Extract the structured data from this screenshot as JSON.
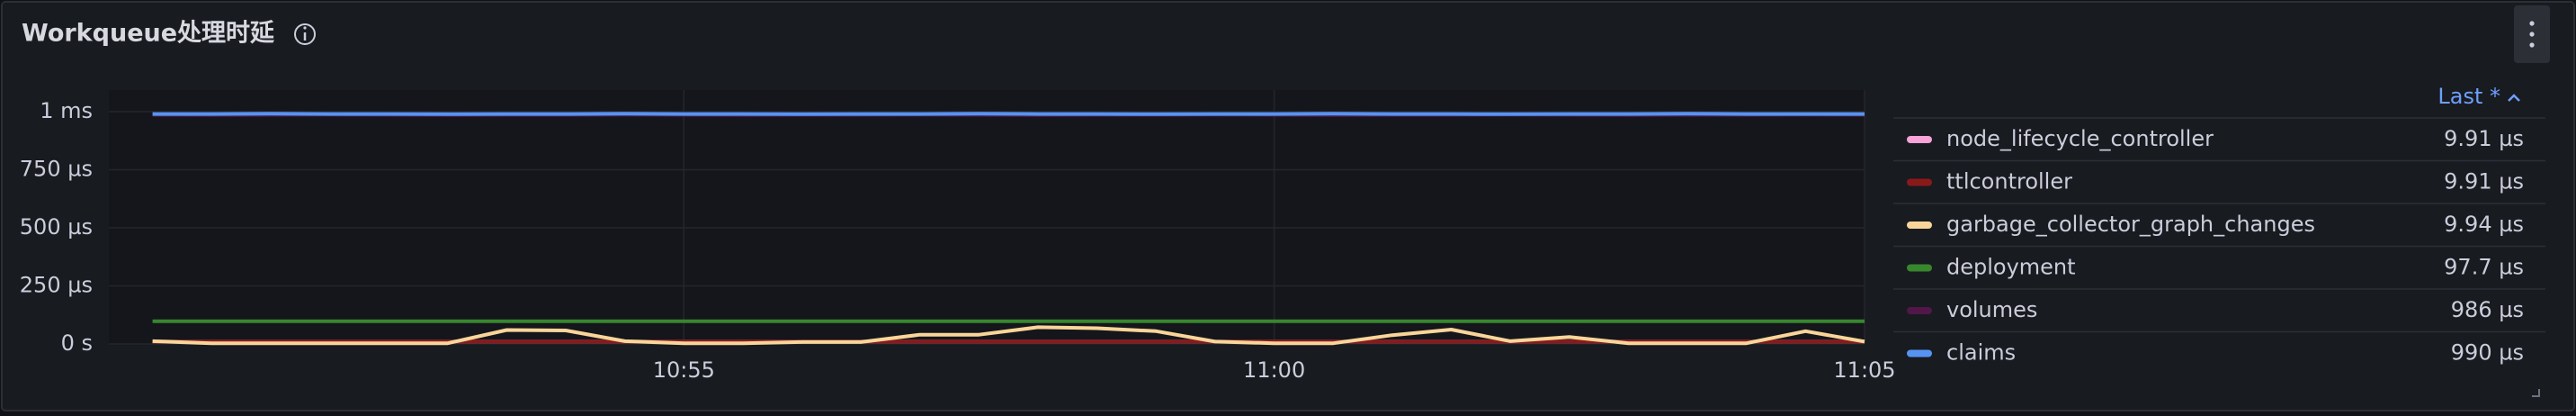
{
  "header": {
    "title": "Workqueue处理时延"
  },
  "chart_data": {
    "type": "line",
    "x": [
      650.5,
      651,
      651.5,
      652,
      652.5,
      653,
      653.5,
      654,
      654.5,
      655,
      655.5,
      656,
      656.5,
      657,
      657.5,
      658,
      658.5,
      659,
      659.5,
      660,
      660.5,
      661,
      661.5,
      662,
      662.5,
      663,
      663.5,
      664,
      664.5,
      665
    ],
    "xlim": [
      650.13,
      665
    ],
    "xticks": [
      {
        "value": 655,
        "label": "10:55"
      },
      {
        "value": 660,
        "label": "11:00"
      },
      {
        "value": 665,
        "label": "11:05"
      }
    ],
    "ylim": [
      0,
      1000
    ],
    "yticks": [
      {
        "value": 0,
        "label": "0 s"
      },
      {
        "value": 250,
        "label": "250 µs"
      },
      {
        "value": 500,
        "label": "500 µs"
      },
      {
        "value": 750,
        "label": "750 µs"
      },
      {
        "value": 1000,
        "label": "1 ms"
      }
    ],
    "grid": true,
    "legend_header": "Last *",
    "series": [
      {
        "name": "node_lifecycle_controller",
        "color": "#f5a3d9",
        "legend_value": {
          "value": 9.91,
          "label": "9.91 µs"
        },
        "values": [
          9.9,
          9.92,
          9.9,
          9.91,
          9.9,
          9.92,
          9.9,
          9.91,
          9.9,
          9.92,
          9.9,
          9.91,
          9.9,
          9.92,
          9.9,
          9.91,
          9.9,
          9.92,
          9.9,
          9.91,
          9.9,
          9.92,
          9.9,
          9.91,
          9.9,
          9.92,
          9.9,
          9.91,
          9.9,
          9.91
        ]
      },
      {
        "name": "ttlcontroller",
        "color": "#8a1a1a",
        "legend_value": {
          "value": 9.91,
          "label": "9.91 µs"
        },
        "values": [
          9.92,
          9.9,
          9.91,
          9.9,
          9.92,
          9.9,
          9.91,
          9.9,
          9.92,
          9.9,
          9.91,
          9.9,
          9.92,
          9.9,
          9.91,
          9.9,
          9.92,
          9.9,
          9.91,
          9.9,
          9.92,
          9.9,
          9.91,
          9.9,
          9.92,
          9.9,
          9.91,
          9.9,
          9.92,
          9.91
        ]
      },
      {
        "name": "garbage_collector_graph_changes",
        "color": "#fad599",
        "legend_value": {
          "value": 9.94,
          "label": "9.94 µs"
        },
        "values": [
          12,
          3,
          3,
          3,
          3,
          3,
          60,
          58,
          12,
          3,
          3,
          8,
          8,
          40,
          40,
          72,
          68,
          55,
          10,
          3,
          3,
          38,
          62,
          12,
          30,
          3,
          3,
          3,
          55,
          9.94
        ]
      },
      {
        "name": "deployment",
        "color": "#37872d",
        "legend_value": {
          "value": 97.7,
          "label": "97.7 µs"
        },
        "values": [
          97.6,
          97.7,
          97.5,
          97.7,
          97.6,
          97.8,
          97.7,
          97.6,
          97.7,
          97.5,
          97.7,
          97.6,
          97.8,
          97.7,
          97.6,
          97.7,
          97.5,
          97.7,
          97.6,
          97.8,
          97.7,
          97.6,
          97.7,
          97.5,
          97.7,
          97.6,
          97.8,
          97.7,
          97.6,
          97.7
        ]
      },
      {
        "name": "volumes",
        "color": "#511749",
        "legend_value": {
          "value": 986,
          "label": "986 µs"
        },
        "values": [
          986,
          985,
          986,
          987,
          986,
          985,
          986,
          986,
          987,
          986,
          985,
          986,
          986,
          987,
          986,
          985,
          986,
          986,
          987,
          986,
          985,
          986,
          986,
          987,
          986,
          985,
          986,
          986,
          987,
          986
        ]
      },
      {
        "name": "claims",
        "color": "#5794f2",
        "legend_value": {
          "value": 990,
          "label": "990 µs"
        },
        "values": [
          990,
          990,
          991,
          990,
          990,
          989,
          990,
          990,
          991,
          990,
          990,
          989,
          990,
          990,
          991,
          990,
          990,
          989,
          990,
          990,
          991,
          990,
          990,
          989,
          990,
          990,
          991,
          990,
          990,
          990
        ]
      }
    ]
  }
}
